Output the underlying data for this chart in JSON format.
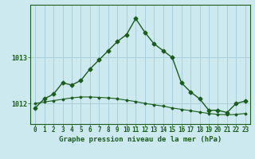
{
  "title": "Graphe pression niveau de la mer (hPa)",
  "background_color": "#cde9f0",
  "grid_color": "#aacfda",
  "line_color": "#1a5c1a",
  "hours": [
    0,
    1,
    2,
    3,
    4,
    5,
    6,
    7,
    8,
    9,
    10,
    11,
    12,
    13,
    14,
    15,
    16,
    17,
    18,
    19,
    20,
    21,
    22,
    23
  ],
  "pressure_main": [
    1011.9,
    1012.1,
    1012.2,
    1012.45,
    1012.4,
    1012.5,
    1012.75,
    1012.95,
    1013.15,
    1013.35,
    1013.5,
    1013.85,
    1013.55,
    1013.3,
    1013.15,
    1013.0,
    1012.45,
    1012.25,
    1012.1,
    1011.85,
    1011.85,
    1011.8,
    1012.0,
    1012.05
  ],
  "pressure_trend": [
    1012.0,
    1012.03,
    1012.06,
    1012.09,
    1012.12,
    1012.14,
    1012.14,
    1012.13,
    1012.12,
    1012.1,
    1012.07,
    1012.04,
    1012.0,
    1011.97,
    1011.94,
    1011.9,
    1011.87,
    1011.84,
    1011.81,
    1011.78,
    1011.76,
    1011.75,
    1011.76,
    1011.78
  ],
  "ylim_min": 1011.55,
  "ylim_max": 1014.15,
  "yticks": [
    1012,
    1013
  ],
  "tick_fontsize": 5.5,
  "title_fontsize": 6.5
}
